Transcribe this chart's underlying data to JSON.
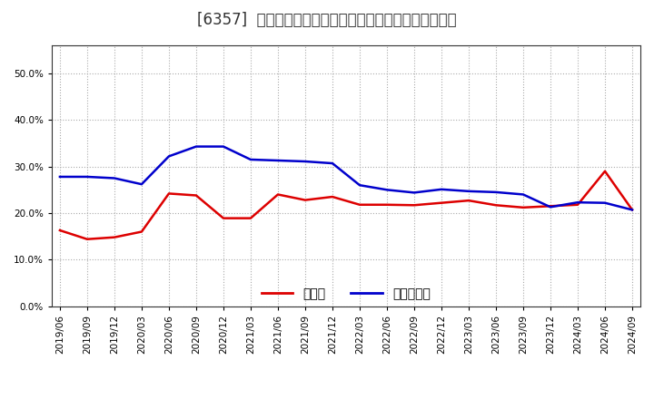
{
  "title": "[6357]  現預金、有利子負債の総資産に対する比率の推移",
  "ylim": [
    0.0,
    0.56
  ],
  "yticks": [
    0.0,
    0.1,
    0.2,
    0.3,
    0.4,
    0.5
  ],
  "background_color": "#ffffff",
  "plot_bg_color": "#ffffff",
  "grid_color": "#aaaaaa",
  "x_labels": [
    "2019/06",
    "2019/09",
    "2019/12",
    "2020/03",
    "2020/06",
    "2020/09",
    "2020/12",
    "2021/03",
    "2021/06",
    "2021/09",
    "2021/12",
    "2022/03",
    "2022/06",
    "2022/09",
    "2022/12",
    "2023/03",
    "2023/06",
    "2023/09",
    "2023/12",
    "2024/03",
    "2024/06",
    "2024/09"
  ],
  "cash_values": [
    0.163,
    0.144,
    0.148,
    0.16,
    0.242,
    0.238,
    0.189,
    0.189,
    0.24,
    0.228,
    0.235,
    0.218,
    0.218,
    0.217,
    0.222,
    0.227,
    0.217,
    0.212,
    0.215,
    0.218,
    0.29,
    0.207
  ],
  "debt_values": [
    0.278,
    0.278,
    0.275,
    0.262,
    0.322,
    0.343,
    0.343,
    0.315,
    0.313,
    0.311,
    0.307,
    0.26,
    0.25,
    0.244,
    0.251,
    0.247,
    0.245,
    0.24,
    0.213,
    0.223,
    0.222,
    0.207
  ],
  "cash_color": "#dd0000",
  "debt_color": "#0000cc",
  "cash_label": "現預金",
  "debt_label": "有利子負債",
  "line_width": 1.8,
  "title_fontsize": 12,
  "tick_fontsize": 7.5,
  "legend_fontsize": 10
}
